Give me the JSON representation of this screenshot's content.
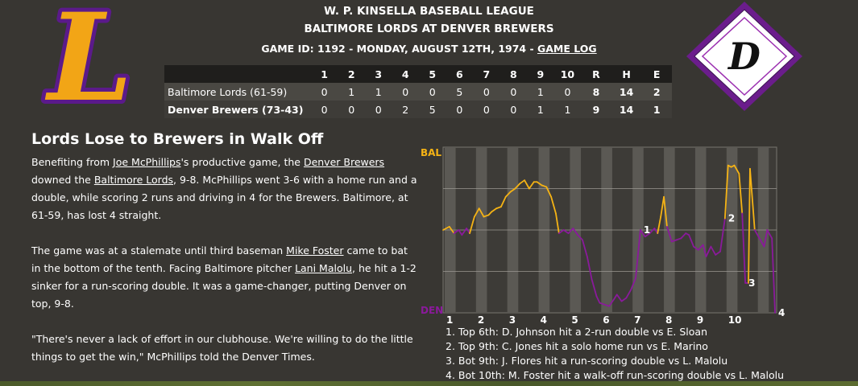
{
  "header": {
    "league": "W. P. KINSELLA BASEBALL LEAGUE",
    "matchup": "BALTIMORE LORDS AT DENVER BREWERS",
    "game_info": "GAME ID: 1192 - MONDAY, AUGUST 12TH, 1974 - ",
    "game_log_link": "GAME LOG"
  },
  "logos": {
    "away_letter": "L",
    "home_letter": "D",
    "away_colors": {
      "fill": "#f2a516",
      "outline": "#5b1a8a"
    },
    "home_colors": {
      "border": "#6b1d8c",
      "inner": "#ffffff"
    }
  },
  "linescore": {
    "headers": [
      "",
      "1",
      "2",
      "3",
      "4",
      "5",
      "6",
      "7",
      "8",
      "9",
      "10",
      "R",
      "H",
      "E"
    ],
    "away": {
      "team": "Baltimore Lords (61-59)",
      "innings": [
        "0",
        "1",
        "1",
        "0",
        "0",
        "5",
        "0",
        "0",
        "1",
        "0"
      ],
      "r": "8",
      "h": "14",
      "e": "2"
    },
    "home": {
      "team": "Denver Brewers (73-43)",
      "innings": [
        "0",
        "0",
        "0",
        "2",
        "5",
        "0",
        "0",
        "0",
        "1",
        "1"
      ],
      "r": "9",
      "h": "14",
      "e": "1"
    }
  },
  "story": {
    "title": "Lords Lose to Brewers in Walk Off",
    "p1": [
      {
        "t": "Benefiting from "
      },
      {
        "t": "Joe McPhillips",
        "link": true
      },
      {
        "t": "'s productive game, the "
      },
      {
        "t": "Denver Brewers",
        "link": true
      },
      {
        "t": " downed the "
      },
      {
        "t": "Baltimore Lords",
        "link": true
      },
      {
        "t": ", 9-8. McPhillips went 3-6 with a home run and a double, while scoring 2 runs and driving in 4 for the Brewers. Baltimore, at 61-59, has lost 4 straight."
      }
    ],
    "p2": [
      {
        "t": "The game was at a stalemate until third baseman "
      },
      {
        "t": "Mike Foster",
        "link": true
      },
      {
        "t": " came to bat in the bottom of the tenth. Facing Baltimore pitcher "
      },
      {
        "t": "Lani Malolu",
        "link": true
      },
      {
        "t": ", he hit a 1-2 sinker for a run-scoring double. It was a game-changer, putting Denver on top, 9-8."
      }
    ],
    "p3": [
      {
        "t": "\"There's never a lack of effort in our clubhouse. We're willing to do the little things to get the win,\" McPhillips told the Denver Times."
      }
    ]
  },
  "chart_data": {
    "type": "line",
    "title": "",
    "top_label": "BAL",
    "bottom_label": "DEN",
    "away_color": "#f5b315",
    "home_color": "#8a1a9b",
    "ylim": [
      0,
      100
    ],
    "xlim": [
      0,
      10.65
    ],
    "x_ticks": [
      "1",
      "2",
      "3",
      "4",
      "5",
      "6",
      "7",
      "8",
      "9",
      "10"
    ],
    "wp_points": [
      [
        0.0,
        50
      ],
      [
        0.2,
        52
      ],
      [
        0.35,
        48
      ],
      [
        0.5,
        50
      ],
      [
        0.6,
        47
      ],
      [
        0.75,
        51
      ],
      [
        0.85,
        48
      ],
      [
        1.0,
        58
      ],
      [
        1.15,
        63
      ],
      [
        1.3,
        58
      ],
      [
        1.45,
        59
      ],
      [
        1.55,
        61
      ],
      [
        1.7,
        63
      ],
      [
        1.85,
        64
      ],
      [
        2.0,
        70
      ],
      [
        2.15,
        73
      ],
      [
        2.3,
        75
      ],
      [
        2.45,
        78
      ],
      [
        2.6,
        80
      ],
      [
        2.75,
        75
      ],
      [
        2.9,
        79
      ],
      [
        3.0,
        79
      ],
      [
        3.15,
        77
      ],
      [
        3.3,
        76
      ],
      [
        3.45,
        70
      ],
      [
        3.6,
        60
      ],
      [
        3.7,
        48
      ],
      [
        3.85,
        50
      ],
      [
        4.0,
        48
      ],
      [
        4.15,
        51
      ],
      [
        4.3,
        47
      ],
      [
        4.45,
        44
      ],
      [
        4.6,
        34
      ],
      [
        4.75,
        20
      ],
      [
        4.9,
        10
      ],
      [
        5.0,
        6
      ],
      [
        5.15,
        5
      ],
      [
        5.3,
        4
      ],
      [
        5.45,
        8
      ],
      [
        5.55,
        11
      ],
      [
        5.7,
        7
      ],
      [
        5.85,
        9
      ],
      [
        6.0,
        14
      ],
      [
        6.15,
        21
      ],
      [
        6.3,
        50
      ],
      [
        6.45,
        46
      ],
      [
        6.6,
        48
      ],
      [
        6.75,
        51
      ],
      [
        6.85,
        48
      ],
      [
        6.95,
        58
      ],
      [
        7.05,
        70
      ],
      [
        7.15,
        52
      ],
      [
        7.3,
        43
      ],
      [
        7.45,
        44
      ],
      [
        7.6,
        45
      ],
      [
        7.75,
        48
      ],
      [
        7.85,
        47
      ],
      [
        8.0,
        40
      ],
      [
        8.15,
        38
      ],
      [
        8.3,
        41
      ],
      [
        8.4,
        34
      ],
      [
        8.55,
        40
      ],
      [
        8.7,
        35
      ],
      [
        8.85,
        37
      ],
      [
        9.0,
        57
      ],
      [
        9.1,
        89
      ],
      [
        9.2,
        88
      ],
      [
        9.3,
        89
      ],
      [
        9.45,
        84
      ],
      [
        9.55,
        60
      ],
      [
        9.65,
        18
      ],
      [
        9.75,
        18
      ],
      [
        9.8,
        87
      ],
      [
        9.95,
        50
      ],
      [
        10.1,
        45
      ],
      [
        10.25,
        40
      ],
      [
        10.35,
        50
      ],
      [
        10.5,
        45
      ],
      [
        10.6,
        0
      ]
    ],
    "annotations": [
      {
        "label": "1",
        "x": 6.3
      },
      {
        "label": "2",
        "x": 9.0
      },
      {
        "label": "3",
        "x": 9.65
      },
      {
        "label": "4",
        "x": 10.6
      }
    ],
    "notes": [
      "1. Top 6th: D. Johnson hit a 2-run double vs E. Sloan",
      "2. Top 9th: C. Jones hit a solo home run vs E. Marino",
      "3. Bot 9th: J. Flores hit a run-scoring double vs L. Malolu",
      "4. Bot 10th: M. Foster hit a walk-off run-scoring double vs L. Malolu"
    ]
  }
}
